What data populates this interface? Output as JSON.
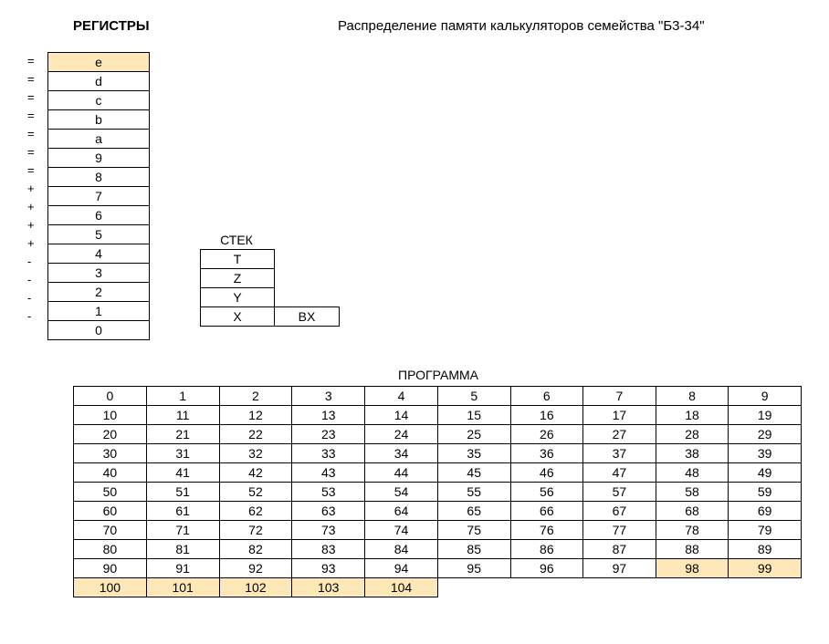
{
  "titles": {
    "registers": "РЕГИСТРЫ",
    "main": "Распределение памяти калькуляторов семейства \"Б3-34\"",
    "stack": "СТЕК",
    "program": "ПРОГРАММА"
  },
  "colors": {
    "highlight": "#ffe8b8",
    "border": "#000000",
    "background": "#ffffff",
    "text": "#000000"
  },
  "registers": {
    "rows": [
      {
        "prefix": "=",
        "label": "e",
        "highlight": true
      },
      {
        "prefix": "=",
        "label": "d",
        "highlight": false
      },
      {
        "prefix": "=",
        "label": "c",
        "highlight": false
      },
      {
        "prefix": "=",
        "label": "b",
        "highlight": false
      },
      {
        "prefix": "=",
        "label": "a",
        "highlight": false
      },
      {
        "prefix": "=",
        "label": "9",
        "highlight": false
      },
      {
        "prefix": "=",
        "label": "8",
        "highlight": false
      },
      {
        "prefix": "+",
        "label": "7",
        "highlight": false
      },
      {
        "prefix": "+",
        "label": "6",
        "highlight": false
      },
      {
        "prefix": "+",
        "label": "5",
        "highlight": false
      },
      {
        "prefix": "+",
        "label": "4",
        "highlight": false
      },
      {
        "prefix": "-",
        "label": "3",
        "highlight": false
      },
      {
        "prefix": "-",
        "label": "2",
        "highlight": false
      },
      {
        "prefix": "-",
        "label": "1",
        "highlight": false
      },
      {
        "prefix": "-",
        "label": "0",
        "highlight": false
      }
    ]
  },
  "stack": {
    "rows": [
      "T",
      "Z",
      "Y",
      "X"
    ],
    "bx": "BX"
  },
  "program": {
    "cols": 10,
    "rows": 11,
    "highlighted": [
      98,
      99,
      100,
      101,
      102,
      103,
      104
    ],
    "max": 104,
    "sparse_last_row_end": 94
  }
}
